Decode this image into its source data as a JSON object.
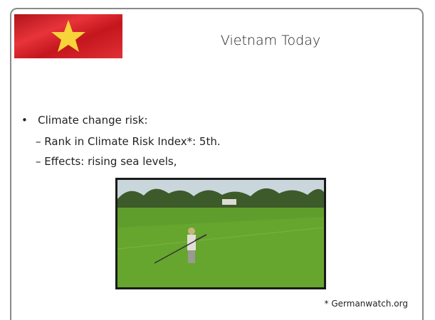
{
  "header": {
    "title": "Vietnam Today"
  },
  "bullets": [
    {
      "text": "Climate change risk:",
      "sub": [
        "Rank in Climate Risk Index*: 5th.",
        "Effects: rising sea levels,"
      ]
    }
  ],
  "footnote": "* Germanwatch.org"
}
